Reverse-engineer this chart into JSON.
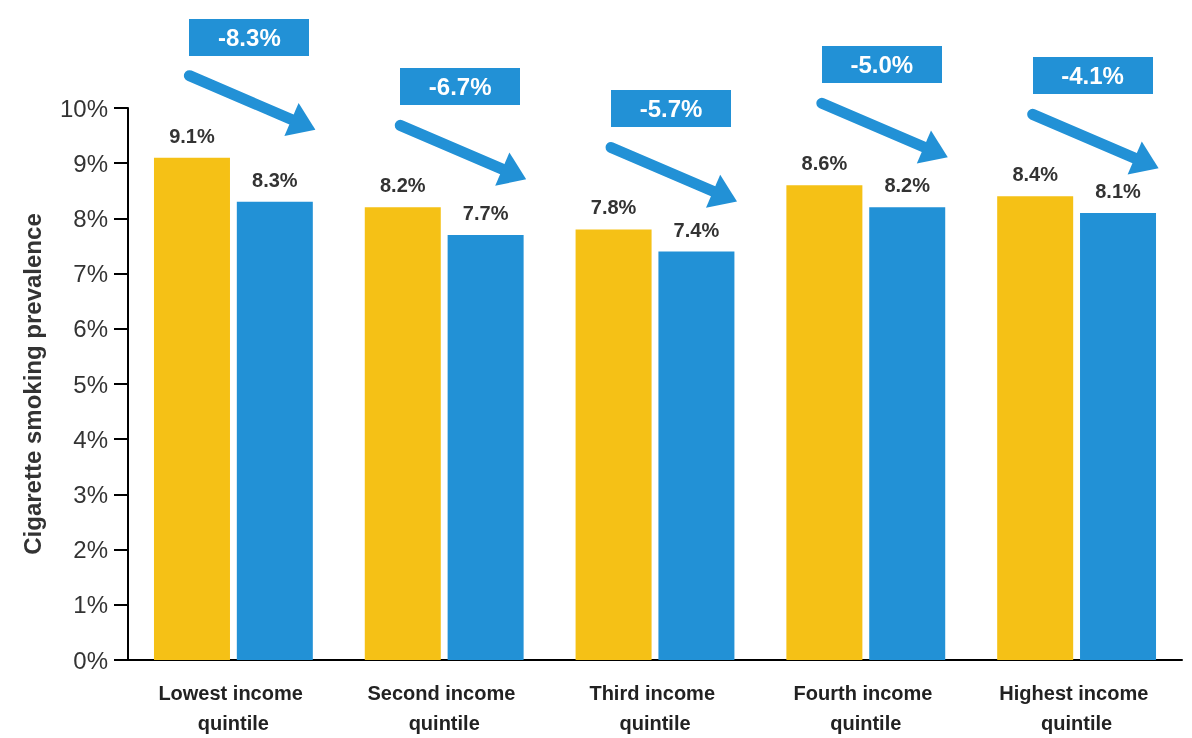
{
  "chart_data": {
    "type": "bar",
    "ylabel": "Cigarette smoking prevalence",
    "categories": [
      "Lowest income quintile",
      "Second income quintile",
      "Third income quintile",
      "Fourth income quintile",
      "Highest income quintile"
    ],
    "series": [
      {
        "color": "#f5c116",
        "values": [
          9.1,
          8.2,
          7.8,
          8.6,
          8.4
        ],
        "value_labels": [
          "9.1%",
          "8.2%",
          "7.8%",
          "8.6%",
          "8.4%"
        ]
      },
      {
        "color": "#2291d6",
        "values": [
          8.3,
          7.7,
          7.4,
          8.2,
          8.1
        ],
        "value_labels": [
          "8.3%",
          "7.7%",
          "7.4%",
          "8.2%",
          "8.1%"
        ]
      }
    ],
    "ylim": [
      0,
      10
    ],
    "yticks": [
      {
        "value": 0,
        "label": "0%"
      },
      {
        "value": 1,
        "label": "1%"
      },
      {
        "value": 2,
        "label": "2%"
      },
      {
        "value": 3,
        "label": "3%"
      },
      {
        "value": 4,
        "label": "4%"
      },
      {
        "value": 5,
        "label": "5%"
      },
      {
        "value": 6,
        "label": "6%"
      },
      {
        "value": 7,
        "label": "7%"
      },
      {
        "value": 8,
        "label": "8%"
      },
      {
        "value": 9,
        "label": "9%"
      },
      {
        "value": 10,
        "label": "10%"
      }
    ],
    "annotations": [
      "-8.3%",
      "-6.7%",
      "-5.7%",
      "-5.0%",
      "-4.1%"
    ],
    "grid": false
  }
}
